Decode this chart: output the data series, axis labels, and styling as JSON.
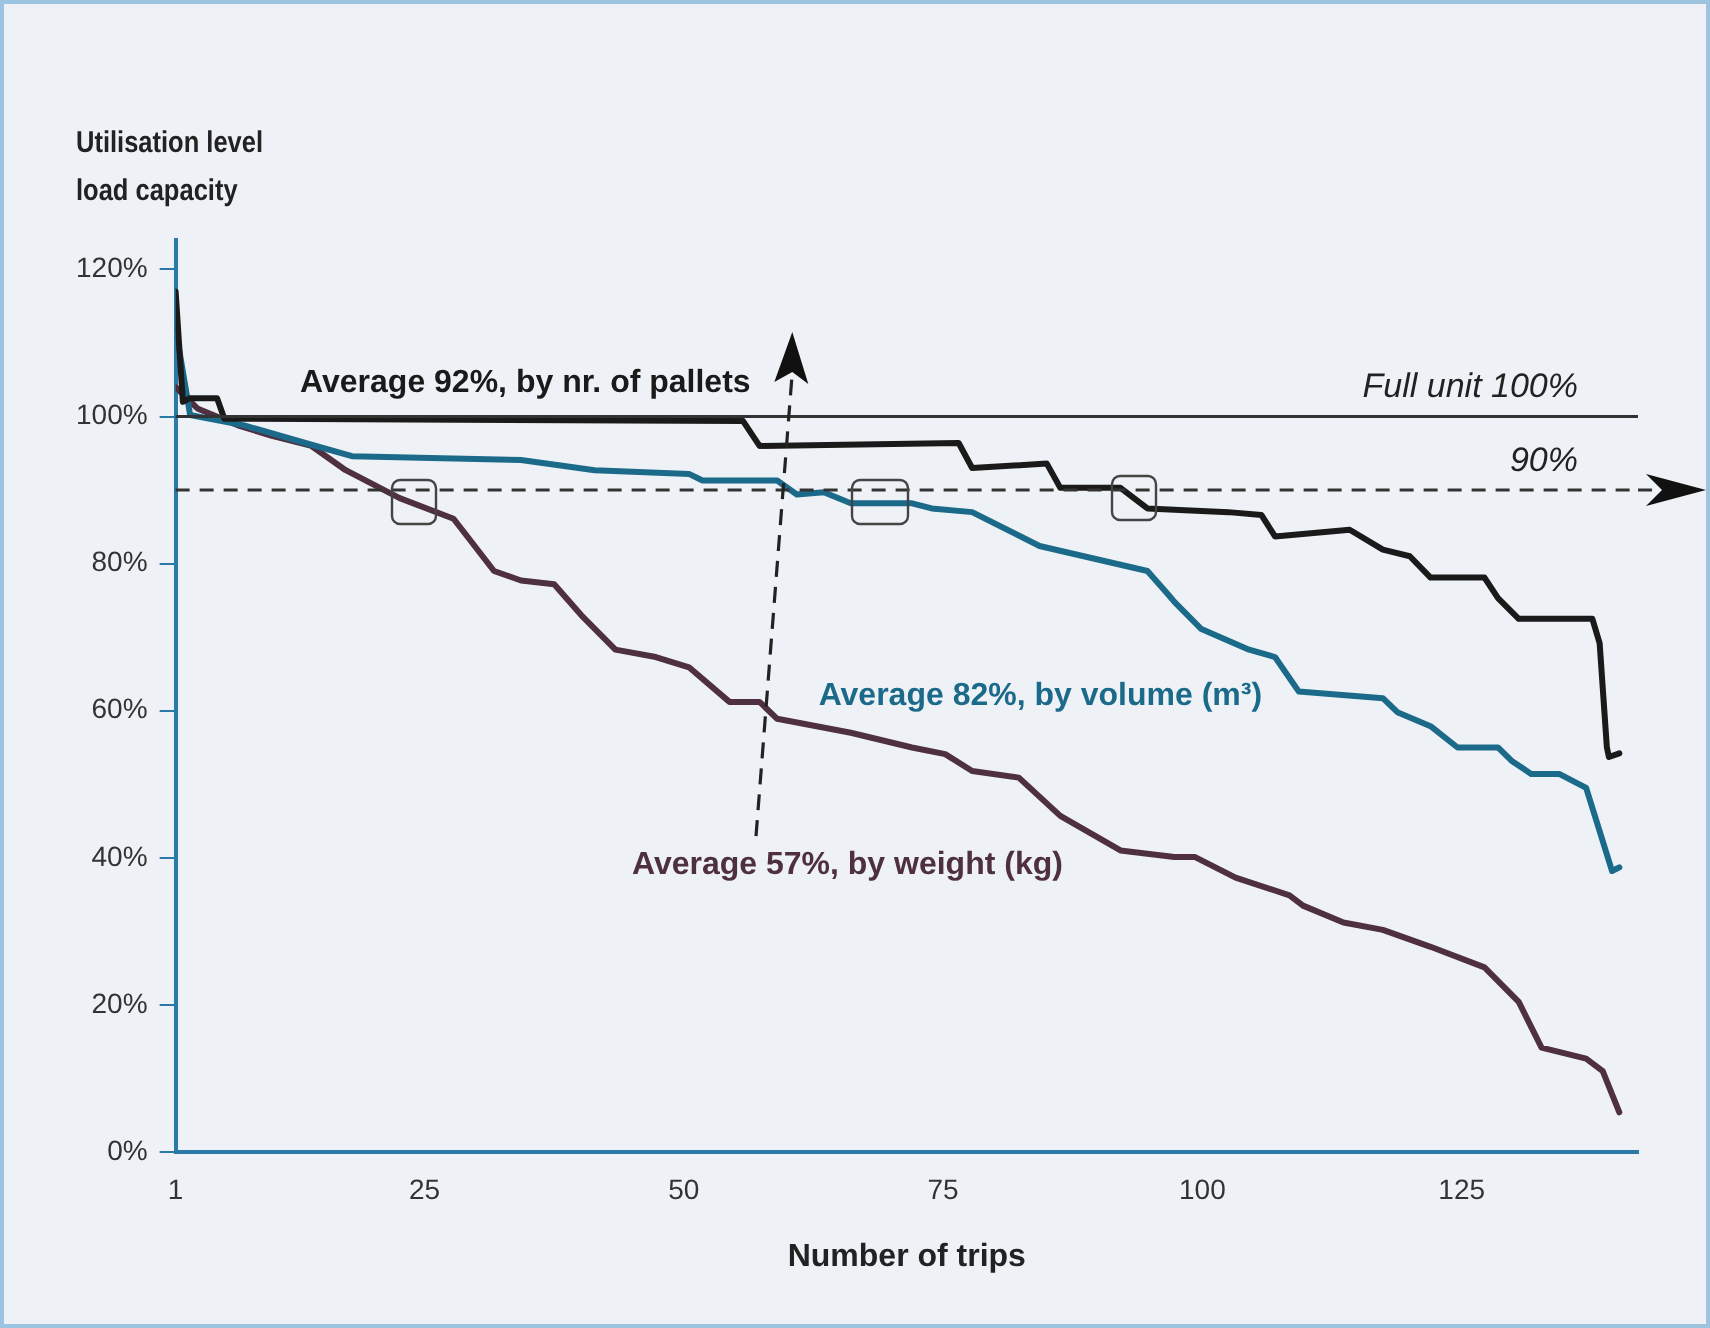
{
  "chart_data": {
    "type": "line",
    "ylabel": "Utilisation level\nload capacity",
    "xlabel": "Number of trips",
    "xlim": [
      1,
      142
    ],
    "xticks": [
      1,
      25,
      50,
      75,
      100,
      125
    ],
    "ylim": [
      0,
      124
    ],
    "yticks": [
      {
        "value": 0,
        "label": "0%"
      },
      {
        "value": 20,
        "label": "20%"
      },
      {
        "value": 40,
        "label": "40%"
      },
      {
        "value": 60,
        "label": "60%"
      },
      {
        "value": 80,
        "label": "80%"
      },
      {
        "value": 100,
        "label": "100%"
      },
      {
        "value": 120,
        "label": "120%"
      }
    ],
    "grid": false,
    "legend": false,
    "marker": "none",
    "line_style": "solid",
    "ref_lines": [
      {
        "axis": "y",
        "value": 100,
        "label": "Full unit 100%",
        "color": "#333333",
        "line_style": "solid"
      },
      {
        "axis": "y",
        "value": 90,
        "label": "90%",
        "color": "#333333",
        "line_style": "dashed"
      }
    ],
    "series": [
      {
        "name": "Average 92%, by nr. of pallets",
        "color": "#1a1a1a",
        "x": [
          1,
          1.7,
          2.4,
          5,
          5.7,
          55.7,
          57.3,
          76.5,
          77.8,
          85,
          86.3,
          92.1,
          94.7,
          102.5,
          105.7,
          107,
          114.2,
          117.4,
          120,
          122,
          127.2,
          128.5,
          130.5,
          137.6,
          138.3,
          139,
          139.2,
          140.2
        ],
        "values": [
          117,
          102,
          102.5,
          102.5,
          99.7,
          99.4,
          96,
          96.4,
          93,
          93.6,
          90.3,
          90.3,
          87.5,
          87,
          86.6,
          83.7,
          84.6,
          81.9,
          81,
          78.1,
          78.1,
          75.3,
          72.5,
          72.5,
          69.2,
          55,
          53.7,
          54.2
        ]
      },
      {
        "name": "Average 82%, by volume (m³)",
        "color": "#1b6a8a",
        "x": [
          1,
          2.4,
          7.6,
          13.5,
          18,
          34.3,
          41.4,
          50.5,
          51.8,
          59,
          60.9,
          63.5,
          66.1,
          72,
          73.9,
          77.8,
          84.3,
          94.7,
          96.7,
          97.3,
          99.9,
          104.5,
          107,
          109.3,
          112.9,
          117.4,
          118.8,
          122,
          124.6,
          128.5,
          129.8,
          131.7,
          134.4,
          137,
          139.5,
          140.2
        ],
        "values": [
          112,
          100.2,
          98.8,
          96.4,
          94.6,
          94.1,
          92.7,
          92.2,
          91.3,
          91.3,
          89.4,
          89.7,
          88.2,
          88.2,
          87.5,
          87,
          82.4,
          79,
          75.8,
          74.8,
          71.1,
          68.3,
          67.3,
          62.6,
          62.2,
          61.7,
          59.8,
          57.9,
          55,
          55,
          53.2,
          51.4,
          51.4,
          49.5,
          38.2,
          38.7
        ]
      },
      {
        "name": "Average 57%, by weight (kg)",
        "color": "#4f3040",
        "x": [
          1,
          3.1,
          7,
          10.2,
          14.1,
          17.4,
          22.6,
          27.8,
          31.7,
          34.3,
          37.5,
          40.1,
          43.4,
          47.3,
          50.5,
          54.4,
          57.3,
          59,
          66.1,
          72,
          75.2,
          77.8,
          82.3,
          86.3,
          92.1,
          97.3,
          99.3,
          103.2,
          108.4,
          109.7,
          113.6,
          117.4,
          122,
          127.2,
          130.5,
          132.7,
          137,
          138.6,
          140.2
        ],
        "values": [
          104,
          101.1,
          98.8,
          97.4,
          96,
          92.7,
          88.9,
          86.1,
          79,
          77.7,
          77.2,
          73,
          68.3,
          67.3,
          65.9,
          61.2,
          61.2,
          58.9,
          57,
          55,
          54.1,
          51.8,
          50.9,
          45.7,
          41,
          40.1,
          40.1,
          37.3,
          34.9,
          33.5,
          31.2,
          30.2,
          27.9,
          25.1,
          20.4,
          14.2,
          12.7,
          11,
          5.4
        ]
      }
    ]
  }
}
